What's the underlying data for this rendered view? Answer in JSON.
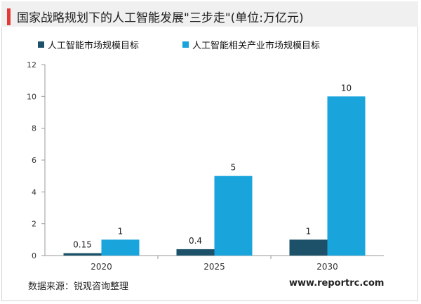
{
  "title": "国家战略规划下的人工智能发展\"三步走\"(单位:万亿元)",
  "source": "数据来源：锐观咨询整理",
  "website": "www.reportrc.com",
  "colors": {
    "series1": "#1c5169",
    "series2": "#19a4dc",
    "accent": "#e53935"
  },
  "chart_data": {
    "type": "bar",
    "categories": [
      "2020",
      "2025",
      "2030"
    ],
    "series": [
      {
        "name": "人工智能市场规模目标",
        "values": [
          0.15,
          0.4,
          1
        ]
      },
      {
        "name": "人工智能相关产业市场规模目标",
        "values": [
          1,
          5,
          10
        ]
      }
    ],
    "data_labels": [
      [
        "0.15",
        "0.4",
        "1"
      ],
      [
        "1",
        "5",
        "10"
      ]
    ],
    "yticks": [
      "0",
      "2",
      "4",
      "6",
      "8",
      "10",
      "12"
    ],
    "ylim": [
      0,
      12
    ],
    "grid": false,
    "legend_position": "top"
  }
}
